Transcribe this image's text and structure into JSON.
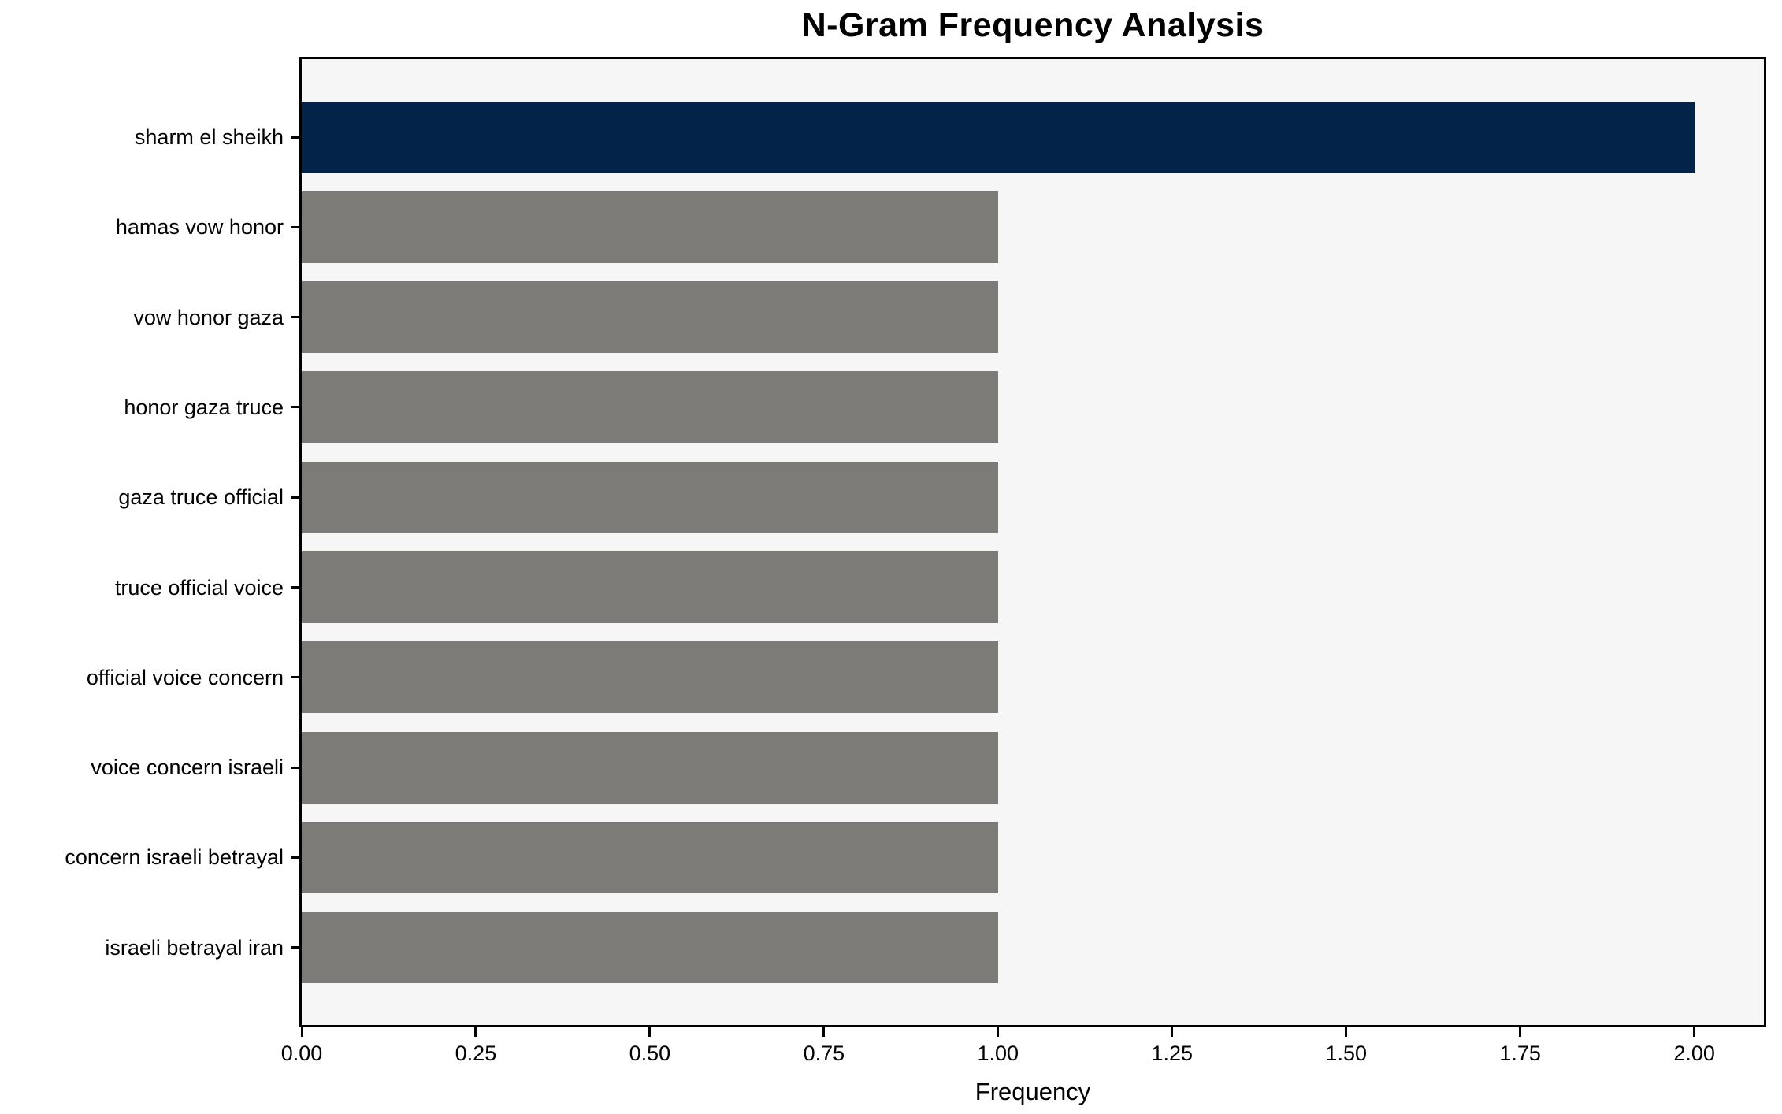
{
  "chart_data": {
    "type": "bar",
    "orientation": "horizontal",
    "title": "N-Gram Frequency Analysis",
    "xlabel": "Frequency",
    "ylabel": "",
    "categories": [
      "sharm el sheikh",
      "hamas vow honor",
      "vow honor gaza",
      "honor gaza truce",
      "gaza truce official",
      "truce official voice",
      "official voice concern",
      "voice concern israeli",
      "concern israeli betrayal",
      "israeli betrayal iran"
    ],
    "values": [
      2,
      1,
      1,
      1,
      1,
      1,
      1,
      1,
      1,
      1
    ],
    "bar_colors": [
      "#042349",
      "#7c7b77",
      "#7c7b77",
      "#7c7b77",
      "#7c7b77",
      "#7c7b77",
      "#7c7b77",
      "#7c7b77",
      "#7c7b77",
      "#7c7b77"
    ],
    "xlim": [
      0,
      2.1
    ],
    "xticks": [
      "0.00",
      "0.25",
      "0.50",
      "0.75",
      "1.00",
      "1.25",
      "1.50",
      "1.75",
      "2.00"
    ],
    "xtick_values": [
      0,
      0.25,
      0.5,
      0.75,
      1.0,
      1.25,
      1.5,
      1.75,
      2.0
    ],
    "grid": false,
    "legend": null,
    "colors": {
      "highlight": "#042349",
      "default": "#7c7b77",
      "plot_background": "#f6f6f6",
      "figure_background": "#ffffff",
      "spine": "#000000",
      "text": "#000000"
    }
  }
}
